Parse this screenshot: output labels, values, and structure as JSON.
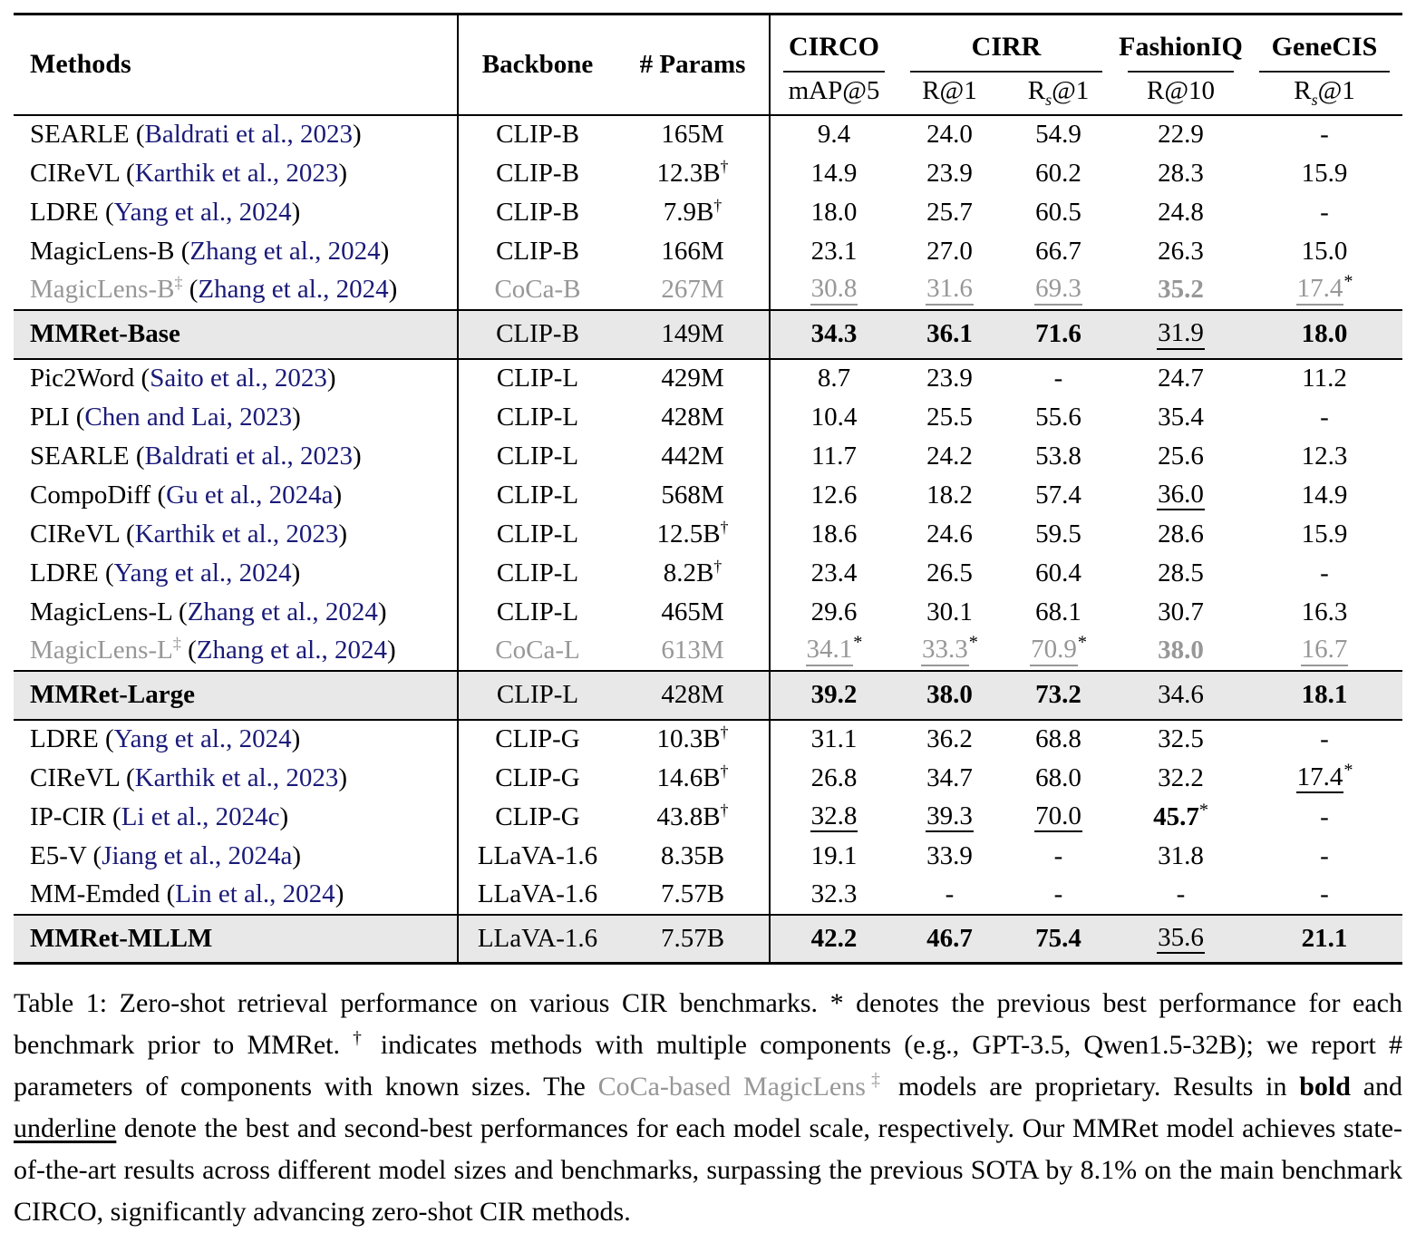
{
  "colors": {
    "citation": "#1a1a78",
    "muted": "#979797",
    "highlight_bg": "#e8e8e8"
  },
  "table": {
    "header": {
      "methods": "Methods",
      "backbone": "Backbone",
      "params": "# Params",
      "groups": [
        "CIRCO",
        "CIRR",
        "FashionIQ",
        "GeneCIS"
      ],
      "metrics": [
        {
          "pre": "mAP@5",
          "sub": "",
          "post": ""
        },
        {
          "pre": "R@1",
          "sub": "",
          "post": ""
        },
        {
          "pre": "R",
          "sub": "s",
          "post": "@1"
        },
        {
          "pre": "R@10",
          "sub": "",
          "post": ""
        },
        {
          "pre": "R",
          "sub": "s",
          "post": "@1"
        }
      ]
    },
    "rows": [
      {
        "method": "SEARLE",
        "sup": "",
        "cite": "Baldrati et al., 2023",
        "backbone": "CLIP-B",
        "params": "165M",
        "dagger": false,
        "gray": false,
        "hl": false,
        "cells": [
          {
            "v": "9.4"
          },
          {
            "v": "24.0"
          },
          {
            "v": "54.9"
          },
          {
            "v": "22.9"
          },
          {
            "v": "-"
          }
        ]
      },
      {
        "method": "CIReVL",
        "sup": "",
        "cite": "Karthik et al., 2023",
        "backbone": "CLIP-B",
        "params": "12.3B",
        "dagger": true,
        "gray": false,
        "hl": false,
        "cells": [
          {
            "v": "14.9"
          },
          {
            "v": "23.9"
          },
          {
            "v": "60.2"
          },
          {
            "v": "28.3"
          },
          {
            "v": "15.9"
          }
        ]
      },
      {
        "method": "LDRE",
        "sup": "",
        "cite": "Yang et al., 2024",
        "backbone": "CLIP-B",
        "params": "7.9B",
        "dagger": true,
        "gray": false,
        "hl": false,
        "cells": [
          {
            "v": "18.0"
          },
          {
            "v": "25.7"
          },
          {
            "v": "60.5"
          },
          {
            "v": "24.8"
          },
          {
            "v": "-"
          }
        ]
      },
      {
        "method": "MagicLens-B",
        "sup": "",
        "cite": "Zhang et al., 2024",
        "backbone": "CLIP-B",
        "params": "166M",
        "dagger": false,
        "gray": false,
        "hl": false,
        "cells": [
          {
            "v": "23.1"
          },
          {
            "v": "27.0"
          },
          {
            "v": "66.7"
          },
          {
            "v": "26.3"
          },
          {
            "v": "15.0"
          }
        ]
      },
      {
        "method": "MagicLens-B",
        "sup": "‡",
        "cite": "Zhang et al., 2024",
        "backbone": "CoCa-B",
        "params": "267M",
        "dagger": false,
        "gray": true,
        "hl": false,
        "cells": [
          {
            "v": "30.8",
            "u": 1
          },
          {
            "v": "31.6",
            "u": 1
          },
          {
            "v": "69.3",
            "u": 1
          },
          {
            "v": "35.2",
            "b": 1
          },
          {
            "v": "17.4",
            "u": 1,
            "star": 1
          }
        ]
      },
      {
        "method": "MMRet-Base",
        "sup": "",
        "cite": "",
        "backbone": "CLIP-B",
        "params": "149M",
        "dagger": false,
        "gray": false,
        "hl": true,
        "cells": [
          {
            "v": "34.3",
            "b": 1
          },
          {
            "v": "36.1",
            "b": 1
          },
          {
            "v": "71.6",
            "b": 1
          },
          {
            "v": "31.9",
            "u": 1
          },
          {
            "v": "18.0",
            "b": 1
          }
        ]
      },
      {
        "method": "Pic2Word",
        "sup": "",
        "cite": "Saito et al., 2023",
        "backbone": "CLIP-L",
        "params": "429M",
        "dagger": false,
        "gray": false,
        "hl": false,
        "cells": [
          {
            "v": "8.7"
          },
          {
            "v": "23.9"
          },
          {
            "v": "-"
          },
          {
            "v": "24.7"
          },
          {
            "v": "11.2"
          }
        ]
      },
      {
        "method": "PLI",
        "sup": "",
        "cite": "Chen and Lai, 2023",
        "backbone": "CLIP-L",
        "params": "428M",
        "dagger": false,
        "gray": false,
        "hl": false,
        "cells": [
          {
            "v": "10.4"
          },
          {
            "v": "25.5"
          },
          {
            "v": "55.6"
          },
          {
            "v": "35.4"
          },
          {
            "v": "-"
          }
        ]
      },
      {
        "method": "SEARLE",
        "sup": "",
        "cite": "Baldrati et al., 2023",
        "backbone": "CLIP-L",
        "params": "442M",
        "dagger": false,
        "gray": false,
        "hl": false,
        "cells": [
          {
            "v": "11.7"
          },
          {
            "v": "24.2"
          },
          {
            "v": "53.8"
          },
          {
            "v": "25.6"
          },
          {
            "v": "12.3"
          }
        ]
      },
      {
        "method": "CompoDiff",
        "sup": "",
        "cite": "Gu et al., 2024a",
        "backbone": "CLIP-L",
        "params": "568M",
        "dagger": false,
        "gray": false,
        "hl": false,
        "cells": [
          {
            "v": "12.6"
          },
          {
            "v": "18.2"
          },
          {
            "v": "57.4"
          },
          {
            "v": "36.0",
            "u": 1
          },
          {
            "v": "14.9"
          }
        ]
      },
      {
        "method": "CIReVL",
        "sup": "",
        "cite": "Karthik et al., 2023",
        "backbone": "CLIP-L",
        "params": "12.5B",
        "dagger": true,
        "gray": false,
        "hl": false,
        "cells": [
          {
            "v": "18.6"
          },
          {
            "v": "24.6"
          },
          {
            "v": "59.5"
          },
          {
            "v": "28.6"
          },
          {
            "v": "15.9"
          }
        ]
      },
      {
        "method": "LDRE",
        "sup": "",
        "cite": "Yang et al., 2024",
        "backbone": "CLIP-L",
        "params": "8.2B",
        "dagger": true,
        "gray": false,
        "hl": false,
        "cells": [
          {
            "v": "23.4"
          },
          {
            "v": "26.5"
          },
          {
            "v": "60.4"
          },
          {
            "v": "28.5"
          },
          {
            "v": "-"
          }
        ]
      },
      {
        "method": "MagicLens-L",
        "sup": "",
        "cite": "Zhang et al., 2024",
        "backbone": "CLIP-L",
        "params": "465M",
        "dagger": false,
        "gray": false,
        "hl": false,
        "cells": [
          {
            "v": "29.6"
          },
          {
            "v": "30.1"
          },
          {
            "v": "68.1"
          },
          {
            "v": "30.7"
          },
          {
            "v": "16.3"
          }
        ]
      },
      {
        "method": "MagicLens-L",
        "sup": "‡",
        "cite": "Zhang et al., 2024",
        "backbone": "CoCa-L",
        "params": "613M",
        "dagger": false,
        "gray": true,
        "hl": false,
        "cells": [
          {
            "v": "34.1",
            "u": 1,
            "star": 1
          },
          {
            "v": "33.3",
            "u": 1,
            "star": 1
          },
          {
            "v": "70.9",
            "u": 1,
            "star": 1
          },
          {
            "v": "38.0",
            "b": 1
          },
          {
            "v": "16.7",
            "u": 1
          }
        ]
      },
      {
        "method": "MMRet-Large",
        "sup": "",
        "cite": "",
        "backbone": "CLIP-L",
        "params": "428M",
        "dagger": false,
        "gray": false,
        "hl": true,
        "cells": [
          {
            "v": "39.2",
            "b": 1
          },
          {
            "v": "38.0",
            "b": 1
          },
          {
            "v": "73.2",
            "b": 1
          },
          {
            "v": "34.6"
          },
          {
            "v": "18.1",
            "b": 1
          }
        ]
      },
      {
        "method": "LDRE",
        "sup": "",
        "cite": "Yang et al., 2024",
        "backbone": "CLIP-G",
        "params": "10.3B",
        "dagger": true,
        "gray": false,
        "hl": false,
        "cells": [
          {
            "v": "31.1"
          },
          {
            "v": "36.2"
          },
          {
            "v": "68.8"
          },
          {
            "v": "32.5"
          },
          {
            "v": "-"
          }
        ]
      },
      {
        "method": "CIReVL",
        "sup": "",
        "cite": "Karthik et al., 2023",
        "backbone": "CLIP-G",
        "params": "14.6B",
        "dagger": true,
        "gray": false,
        "hl": false,
        "cells": [
          {
            "v": "26.8"
          },
          {
            "v": "34.7"
          },
          {
            "v": "68.0"
          },
          {
            "v": "32.2"
          },
          {
            "v": "17.4",
            "u": 1,
            "star": 1
          }
        ]
      },
      {
        "method": "IP-CIR",
        "sup": "",
        "cite": "Li et al., 2024c",
        "backbone": "CLIP-G",
        "params": "43.8B",
        "dagger": true,
        "gray": false,
        "hl": false,
        "cells": [
          {
            "v": "32.8",
            "u": 1
          },
          {
            "v": "39.3",
            "u": 1
          },
          {
            "v": "70.0",
            "u": 1
          },
          {
            "v": "45.7",
            "b": 1,
            "star": 1
          },
          {
            "v": "-"
          }
        ]
      },
      {
        "method": "E5-V",
        "sup": "",
        "cite": "Jiang et al., 2024a",
        "backbone": "LLaVA-1.6",
        "params": "8.35B",
        "dagger": false,
        "gray": false,
        "hl": false,
        "cells": [
          {
            "v": "19.1"
          },
          {
            "v": "33.9"
          },
          {
            "v": "-"
          },
          {
            "v": "31.8"
          },
          {
            "v": "-"
          }
        ]
      },
      {
        "method": "MM-Emded",
        "sup": "",
        "cite": "Lin et al., 2024",
        "backbone": "LLaVA-1.6",
        "params": "7.57B",
        "dagger": false,
        "gray": false,
        "hl": false,
        "cells": [
          {
            "v": "32.3"
          },
          {
            "v": "-"
          },
          {
            "v": "-"
          },
          {
            "v": "-"
          },
          {
            "v": "-"
          }
        ]
      },
      {
        "method": "MMRet-MLLM",
        "sup": "",
        "cite": "",
        "backbone": "LLaVA-1.6",
        "params": "7.57B",
        "dagger": false,
        "gray": false,
        "hl": true,
        "cells": [
          {
            "v": "42.2",
            "b": 1
          },
          {
            "v": "46.7",
            "b": 1
          },
          {
            "v": "75.4",
            "b": 1
          },
          {
            "v": "35.6",
            "u": 1
          },
          {
            "v": "21.1",
            "b": 1
          }
        ]
      }
    ]
  },
  "caption": {
    "segments": [
      {
        "t": "Table 1: Zero-shot retrieval performance on various CIR benchmarks. * denotes the previous best performance for each benchmark prior to MMRet. ",
        "s": "plain"
      },
      {
        "t": "†",
        "s": "sup"
      },
      {
        "t": " indicates methods with multiple components (e.g., GPT-3.5, Qwen1.5-32B); we report # parameters of components with known sizes. The ",
        "s": "plain"
      },
      {
        "t": "CoCa-based MagicLens",
        "s": "gray"
      },
      {
        "t": "‡",
        "s": "graysup"
      },
      {
        "t": " models are proprietary. Results in ",
        "s": "plain"
      },
      {
        "t": "bold",
        "s": "bold"
      },
      {
        "t": " and ",
        "s": "plain"
      },
      {
        "t": "underline",
        "s": "underline"
      },
      {
        "t": " denote the best and second-best performances for each model scale, respectively. Our MMRet model achieves state-of-the-art results across different model sizes and benchmarks, surpassing the previous SOTA by 8.1% on the main benchmark CIRCO, significantly advancing zero-shot CIR methods.",
        "s": "plain"
      }
    ]
  }
}
